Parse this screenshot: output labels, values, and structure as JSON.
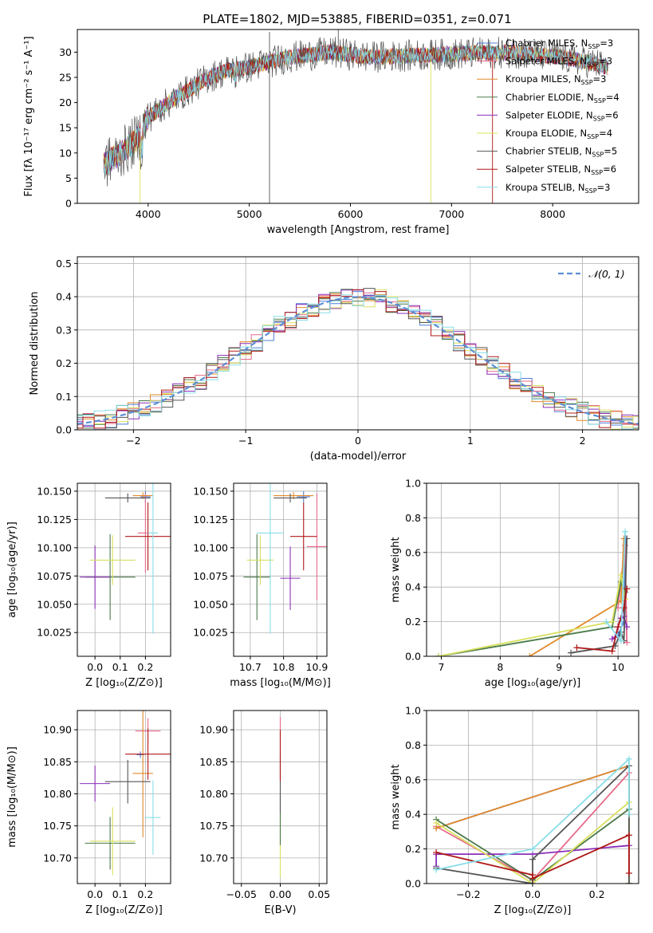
{
  "title": "PLATE=1802, MJD=53885, FIBERID=0351, z=0.071",
  "colors": {
    "chabrier_miles": "#4f7fd6",
    "salpeter_miles": "#e86a8a",
    "kroupa_miles": "#e3892a",
    "chabrier_elodie": "#4a7a4a",
    "salpeter_elodie": "#8a2fb8",
    "kroupa_elodie": "#d8e060",
    "chabrier_stelib": "#555555",
    "salpeter_stelib": "#b01818",
    "kroupa_stelib": "#88dde8",
    "normal": "#5b8fd6",
    "grid": "#b0b0b0"
  },
  "chart_data": [
    {
      "id": "spectrum",
      "type": "line",
      "title": "PLATE=1802, MJD=53885, FIBERID=0351, z=0.071",
      "xlabel": "wavelength [Angstrom, rest frame]",
      "ylabel": "Flux [fλ 10⁻¹⁷ erg cm⁻² s⁻¹ A⁻¹]",
      "xlim": [
        3300,
        8850
      ],
      "ylim": [
        0,
        34.5
      ],
      "grid": false,
      "legend_placement": "right",
      "xticks": [
        4000,
        5000,
        6000,
        7000,
        8000
      ],
      "yticks": [
        0,
        5,
        10,
        15,
        20,
        25,
        30
      ],
      "continuum": {
        "x": [
          3550,
          3700,
          3800,
          3900,
          4000,
          4200,
          4400,
          4600,
          4800,
          5000,
          5200,
          5400,
          5600,
          5800,
          6000,
          6200,
          6400,
          6600,
          6800,
          7000,
          7200,
          7400,
          7600,
          7800,
          8000,
          8200,
          8400,
          8550
        ],
        "y": [
          7.5,
          9.5,
          11,
          13,
          17,
          20,
          22.5,
          25,
          26.5,
          27,
          28,
          29,
          29.5,
          30,
          29.5,
          29,
          29.2,
          29.3,
          29.5,
          29.6,
          29.8,
          29.8,
          30,
          29.6,
          29.2,
          28.6,
          27.8,
          27
        ]
      },
      "series": [
        {
          "name": "Chabrier MILES, N_SSP=3",
          "legend": "Chabrier MILES, N",
          "n": "3",
          "color_key": "chabrier_miles"
        },
        {
          "name": "Salpeter MILES, N_SSP=3",
          "legend": "Salpeter MILES, N",
          "n": "3",
          "color_key": "salpeter_miles"
        },
        {
          "name": "Kroupa MILES, N_SSP=3",
          "legend": "Kroupa MILES, N",
          "n": "3",
          "color_key": "kroupa_miles"
        },
        {
          "name": "Chabrier ELODIE, N_SSP=4",
          "legend": "Chabrier ELODIE, N",
          "n": "4",
          "color_key": "chabrier_elodie"
        },
        {
          "name": "Salpeter ELODIE, N_SSP=6",
          "legend": "Salpeter ELODIE, N",
          "n": "6",
          "color_key": "salpeter_elodie"
        },
        {
          "name": "Kroupa ELODIE, N_SSP=4",
          "legend": "Kroupa ELODIE, N",
          "n": "4",
          "color_key": "kroupa_elodie"
        },
        {
          "name": "Chabrier STELIB, N_SSP=5",
          "legend": "Chabrier STELIB, N",
          "n": "5",
          "color_key": "chabrier_stelib"
        },
        {
          "name": "Salpeter STELIB, N_SSP=6",
          "legend": "Salpeter STELIB, N",
          "n": "6",
          "color_key": "salpeter_stelib"
        },
        {
          "name": "Kroupa STELIB, N_SSP=3",
          "legend": "Kroupa STELIB, N",
          "n": "3",
          "color_key": "kroupa_stelib"
        }
      ],
      "legend_subscript": "SSP",
      "spikes": [
        {
          "x": 5200,
          "y0": 0,
          "y1": 34,
          "color_key": "chabrier_stelib"
        },
        {
          "x": 5880,
          "y0": 28,
          "y1": 34.5,
          "color_key": "chabrier_stelib"
        },
        {
          "x": 3920,
          "y0": 0,
          "y1": 12,
          "color_key": "kroupa_elodie"
        },
        {
          "x": 6795,
          "y0": 0,
          "y1": 29,
          "color_key": "kroupa_elodie"
        },
        {
          "x": 7405,
          "y0": 0,
          "y1": 29.5,
          "color_key": "salpeter_stelib"
        }
      ]
    },
    {
      "id": "residuals",
      "type": "line",
      "xlabel": "(data-model)/error",
      "ylabel": "Normed distribution",
      "xlim": [
        -2.5,
        2.5
      ],
      "ylim": [
        0,
        0.52
      ],
      "grid": true,
      "legend_placement": "top-right",
      "legend_label": "𝒩(0, 1)",
      "xticks": [
        -2,
        -1,
        0,
        1,
        2
      ],
      "yticks": [
        0.0,
        0.1,
        0.2,
        0.3,
        0.4,
        0.5
      ],
      "bin_width": 0.1,
      "series_color_keys": [
        "chabrier_miles",
        "salpeter_miles",
        "kroupa_miles",
        "chabrier_elodie",
        "salpeter_elodie",
        "kroupa_elodie",
        "chabrier_stelib",
        "salpeter_stelib",
        "kroupa_stelib"
      ]
    },
    {
      "id": "age-z",
      "type": "scatter",
      "xlabel": "Z [log₁₀(Z/Z⊙)]",
      "ylabel": "age  [log₁₀(age/yr)]",
      "xlim": [
        -0.07,
        0.3
      ],
      "ylim": [
        10.004,
        10.157
      ],
      "grid": true,
      "xticks": [
        0.0,
        0.1,
        0.2
      ],
      "yticks": [
        10.025,
        10.05,
        10.075,
        10.1,
        10.125,
        10.15
      ],
      "points": [
        {
          "color_key": "chabrier_miles",
          "x": 0.2,
          "y": 10.145,
          "xerr": 0.02,
          "yerr": 0.005
        },
        {
          "color_key": "salpeter_miles",
          "x": 0.2,
          "y": 10.113,
          "xerr": 0.03,
          "yerr": 0.035
        },
        {
          "color_key": "kroupa_miles",
          "x": 0.19,
          "y": 10.146,
          "xerr": 0.04,
          "yerr": 0.003
        },
        {
          "color_key": "chabrier_elodie",
          "x": 0.06,
          "y": 10.074,
          "xerr": 0.1,
          "yerr": 0.038
        },
        {
          "color_key": "salpeter_elodie",
          "x": 0.0,
          "y": 10.074,
          "xerr": 0.06,
          "yerr": 0.028
        },
        {
          "color_key": "kroupa_elodie",
          "x": 0.07,
          "y": 10.089,
          "xerr": 0.09,
          "yerr": 0.022
        },
        {
          "color_key": "chabrier_stelib",
          "x": 0.13,
          "y": 10.144,
          "xerr": 0.09,
          "yerr": 0.004
        },
        {
          "color_key": "salpeter_stelib",
          "x": 0.21,
          "y": 10.11,
          "xerr": 0.09,
          "yerr": 0.03
        },
        {
          "color_key": "kroupa_stelib",
          "x": 0.23,
          "y": 10.113,
          "xerr": 0.02,
          "yerr": 0.089
        }
      ]
    },
    {
      "id": "age-mass",
      "type": "scatter",
      "xlabel": "mass [log₁₀(M/M⊙)]",
      "xlim": [
        10.65,
        10.93
      ],
      "ylim": [
        10.004,
        10.157
      ],
      "grid": true,
      "xticks": [
        10.7,
        10.8,
        10.9
      ],
      "yticks": [
        10.025,
        10.05,
        10.075,
        10.1,
        10.125,
        10.15
      ],
      "points": [
        {
          "color_key": "chabrier_miles",
          "x": 10.86,
          "y": 10.145,
          "xerr": 0.02,
          "yerr": 0.005
        },
        {
          "color_key": "salpeter_miles",
          "x": 10.9,
          "y": 10.101,
          "xerr": 0.03,
          "yerr": 0.047
        },
        {
          "color_key": "kroupa_miles",
          "x": 10.83,
          "y": 10.146,
          "xerr": 0.06,
          "yerr": 0.003
        },
        {
          "color_key": "chabrier_elodie",
          "x": 10.72,
          "y": 10.074,
          "xerr": 0.04,
          "yerr": 0.038
        },
        {
          "color_key": "salpeter_elodie",
          "x": 10.82,
          "y": 10.073,
          "xerr": 0.03,
          "yerr": 0.028
        },
        {
          "color_key": "kroupa_elodie",
          "x": 10.73,
          "y": 10.089,
          "xerr": 0.04,
          "yerr": 0.022
        },
        {
          "color_key": "chabrier_stelib",
          "x": 10.82,
          "y": 10.144,
          "xerr": 0.05,
          "yerr": 0.004
        },
        {
          "color_key": "salpeter_stelib",
          "x": 10.86,
          "y": 10.11,
          "xerr": 0.04,
          "yerr": 0.03
        },
        {
          "color_key": "kroupa_stelib",
          "x": 10.76,
          "y": 10.113,
          "xerr": 0.04,
          "yerr": 0.089
        }
      ]
    },
    {
      "id": "weight-age",
      "type": "line",
      "xlabel": "age  [log₁₀(age/yr)]",
      "ylabel": "mass weight",
      "xlim": [
        6.75,
        10.35
      ],
      "ylim": [
        0,
        1
      ],
      "grid": true,
      "xticks": [
        7,
        8,
        9,
        10
      ],
      "yticks": [
        0.0,
        0.2,
        0.4,
        0.6,
        0.8,
        1.0
      ],
      "series": [
        {
          "color_key": "chabrier_miles",
          "x": [
            10.0,
            10.1,
            10.13
          ],
          "y": [
            0.12,
            0.2,
            0.68
          ]
        },
        {
          "color_key": "salpeter_miles",
          "x": [
            10.0,
            10.12,
            10.15
          ],
          "y": [
            0.28,
            0.64,
            0.08
          ]
        },
        {
          "color_key": "kroupa_miles",
          "x": [
            8.5,
            10.05,
            10.1
          ],
          "y": [
            0.0,
            0.32,
            0.68
          ]
        },
        {
          "color_key": "chabrier_elodie",
          "x": [
            6.95,
            9.9,
            10.05,
            10.12
          ],
          "y": [
            0.0,
            0.17,
            0.43,
            0.37
          ]
        },
        {
          "color_key": "salpeter_elodie",
          "x": [
            9.9,
            9.95,
            10.0,
            10.05,
            10.1,
            10.15
          ],
          "y": [
            0.1,
            0.11,
            0.17,
            0.22,
            0.23,
            0.17
          ]
        },
        {
          "color_key": "kroupa_elodie",
          "x": [
            6.95,
            9.9,
            10.05,
            10.12
          ],
          "y": [
            0.0,
            0.2,
            0.47,
            0.33
          ]
        },
        {
          "color_key": "chabrier_stelib",
          "x": [
            9.2,
            9.95,
            10.05,
            10.1,
            10.15
          ],
          "y": [
            0.02,
            0.06,
            0.14,
            0.09,
            0.68
          ]
        },
        {
          "color_key": "salpeter_stelib",
          "x": [
            9.3,
            9.9,
            10.0,
            10.1,
            10.15
          ],
          "y": [
            0.05,
            0.03,
            0.17,
            0.28,
            0.39
          ]
        },
        {
          "color_key": "kroupa_stelib",
          "x": [
            9.8,
            10.05,
            10.12
          ],
          "y": [
            0.2,
            0.09,
            0.72
          ]
        }
      ]
    },
    {
      "id": "mass-z",
      "type": "scatter",
      "xlabel": "Z [log₁₀(Z/Z⊙)]",
      "ylabel": "mass [log₁₀(M/M⊙)]",
      "xlim": [
        -0.07,
        0.3
      ],
      "ylim": [
        10.66,
        10.93
      ],
      "grid": true,
      "xticks": [
        0.0,
        0.1,
        0.2
      ],
      "yticks": [
        10.7,
        10.75,
        10.8,
        10.85,
        10.9
      ],
      "points": [
        {
          "color_key": "chabrier_miles",
          "x": 0.18,
          "y": 10.861,
          "xerr": 0.015,
          "yerr": 0.005
        },
        {
          "color_key": "salpeter_miles",
          "x": 0.21,
          "y": 10.898,
          "xerr": 0.05,
          "yerr": 0.02
        },
        {
          "color_key": "kroupa_miles",
          "x": 0.19,
          "y": 10.832,
          "xerr": 0.04,
          "yerr": 0.1
        },
        {
          "color_key": "chabrier_elodie",
          "x": 0.06,
          "y": 10.723,
          "xerr": 0.1,
          "yerr": 0.041
        },
        {
          "color_key": "salpeter_elodie",
          "x": 0.0,
          "y": 10.816,
          "xerr": 0.06,
          "yerr": 0.028
        },
        {
          "color_key": "kroupa_elodie",
          "x": 0.07,
          "y": 10.726,
          "xerr": 0.09,
          "yerr": 0.053
        },
        {
          "color_key": "chabrier_stelib",
          "x": 0.13,
          "y": 10.819,
          "xerr": 0.09,
          "yerr": 0.034
        },
        {
          "color_key": "salpeter_stelib",
          "x": 0.21,
          "y": 10.862,
          "xerr": 0.09,
          "yerr": 0.04
        },
        {
          "color_key": "kroupa_stelib",
          "x": 0.23,
          "y": 10.763,
          "xerr": 0.03,
          "yerr": 0.058
        }
      ]
    },
    {
      "id": "mass-ebv",
      "type": "scatter",
      "xlabel": "E(B-V)",
      "xlim": [
        -0.06,
        0.06
      ],
      "ylim": [
        10.66,
        10.93
      ],
      "grid": true,
      "xticks": [
        -0.05,
        0.0,
        0.05
      ],
      "yticks": [
        10.7,
        10.75,
        10.8,
        10.85,
        10.9
      ],
      "points": [
        {
          "color_key": "salpeter_miles",
          "x": 0.0,
          "y": 10.87,
          "xerr": 0.0,
          "yerr": 0.05
        },
        {
          "color_key": "kroupa_elodie",
          "x": 0.0,
          "y": 10.72,
          "xerr": 0.0,
          "yerr": 0.05
        },
        {
          "color_key": "chabrier_elodie",
          "x": 0.0,
          "y": 10.76,
          "xerr": 0.0,
          "yerr": 0.04
        },
        {
          "color_key": "chabrier_stelib",
          "x": 0.0,
          "y": 10.815,
          "xerr": 0.0,
          "yerr": 0.045
        },
        {
          "color_key": "salpeter_stelib",
          "x": 0.0,
          "y": 10.86,
          "xerr": 0.0,
          "yerr": 0.04
        }
      ]
    },
    {
      "id": "weight-z",
      "type": "line",
      "xlabel": "Z [log₁₀(Z/Z⊙)]",
      "ylabel": "mass weight",
      "xlim": [
        -0.33,
        0.33
      ],
      "ylim": [
        0,
        1
      ],
      "grid": true,
      "xticks": [
        -0.2,
        0.0,
        0.2
      ],
      "yticks": [
        0.0,
        0.2,
        0.4,
        0.6,
        0.8,
        1.0
      ],
      "series": [
        {
          "color_key": "chabrier_miles",
          "x": [
            -0.3,
            0.3,
            0.3
          ],
          "y": [
            0.32,
            0.68,
            0.0
          ]
        },
        {
          "color_key": "salpeter_miles",
          "x": [
            -0.3,
            0.0,
            0.3,
            0.3
          ],
          "y": [
            0.33,
            0.02,
            0.64,
            0.0
          ]
        },
        {
          "color_key": "kroupa_miles",
          "x": [
            -0.3,
            0.3,
            0.3
          ],
          "y": [
            0.32,
            0.68,
            0.0
          ]
        },
        {
          "color_key": "chabrier_elodie",
          "x": [
            -0.3,
            0.0,
            0.3,
            0.3
          ],
          "y": [
            0.37,
            0.02,
            0.43,
            0.0
          ]
        },
        {
          "color_key": "salpeter_elodie",
          "x": [
            -0.3,
            -0.3,
            0.0,
            0.3
          ],
          "y": [
            0.1,
            0.17,
            0.17,
            0.22
          ]
        },
        {
          "color_key": "kroupa_elodie",
          "x": [
            -0.3,
            0.0,
            0.3,
            0.3
          ],
          "y": [
            0.35,
            0.0,
            0.47,
            0.0
          ]
        },
        {
          "color_key": "chabrier_stelib",
          "x": [
            -0.3,
            0.0,
            0.0,
            0.3,
            0.3
          ],
          "y": [
            0.09,
            0.0,
            0.14,
            0.68,
            0.0
          ]
        },
        {
          "color_key": "salpeter_stelib",
          "x": [
            -0.3,
            0.0,
            0.0,
            0.3,
            0.3
          ],
          "y": [
            0.18,
            0.05,
            0.03,
            0.28,
            0.06
          ]
        },
        {
          "color_key": "kroupa_stelib",
          "x": [
            -0.3,
            0.0,
            0.3,
            0.3
          ],
          "y": [
            0.08,
            0.2,
            0.72,
            0.4
          ]
        }
      ]
    }
  ]
}
